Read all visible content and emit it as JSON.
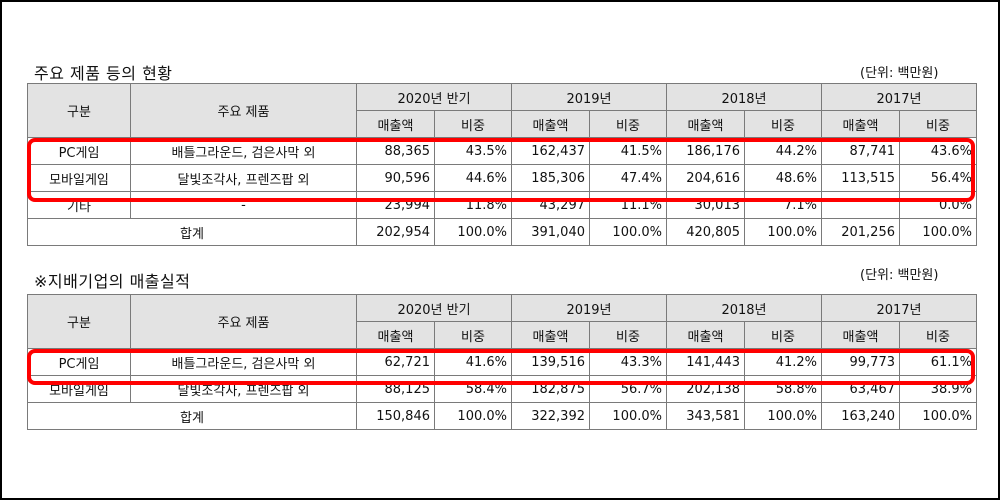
{
  "table1": {
    "title": "주요 제품 등의 현황",
    "unit": "(단위: 백만원)",
    "headers": {
      "division": "구분",
      "products": "주요 제품",
      "periods": [
        "2020년 반기",
        "2019년",
        "2018년",
        "2017년"
      ],
      "amount": "매출액",
      "ratio": "비중"
    },
    "rows": [
      {
        "division": "PC게임",
        "products": "배틀그라운드, 검은사막 외",
        "values": [
          "88,365",
          "43.5%",
          "162,437",
          "41.5%",
          "186,176",
          "44.2%",
          "87,741",
          "43.6%"
        ]
      },
      {
        "division": "모바일게임",
        "products": "달빛조각사, 프렌즈팝 외",
        "values": [
          "90,596",
          "44.6%",
          "185,306",
          "47.4%",
          "204,616",
          "48.6%",
          "113,515",
          "56.4%"
        ]
      },
      {
        "division": "기타",
        "products": "-",
        "values": [
          "23,994",
          "11.8%",
          "43,297",
          "11.1%",
          "30,013",
          "7.1%",
          "",
          "0.0%"
        ]
      }
    ],
    "total": {
      "label": "합계",
      "values": [
        "202,954",
        "100.0%",
        "391,040",
        "100.0%",
        "420,805",
        "100.0%",
        "201,256",
        "100.0%"
      ]
    }
  },
  "table2": {
    "title": "※지배기업의 매출실적",
    "unit": "(단위: 백만원)",
    "headers": {
      "division": "구분",
      "products": "주요 제품",
      "periods": [
        "2020년 반기",
        "2019년",
        "2018년",
        "2017년"
      ],
      "amount": "매출액",
      "ratio": "비중"
    },
    "rows": [
      {
        "division": "PC게임",
        "products": "배틀그라운드, 검은사막 외",
        "values": [
          "62,721",
          "41.6%",
          "139,516",
          "43.3%",
          "141,443",
          "41.2%",
          "99,773",
          "61.1%"
        ]
      },
      {
        "division": "모바일게임",
        "products": "달빛조각사, 프렌즈팝 외",
        "values": [
          "88,125",
          "58.4%",
          "182,875",
          "56.7%",
          "202,138",
          "58.8%",
          "63,467",
          "38.9%"
        ]
      }
    ],
    "total": {
      "label": "합계",
      "values": [
        "150,846",
        "100.0%",
        "322,392",
        "100.0%",
        "343,581",
        "100.0%",
        "163,240",
        "100.0%"
      ]
    }
  },
  "highlight_color": "#ff0000"
}
